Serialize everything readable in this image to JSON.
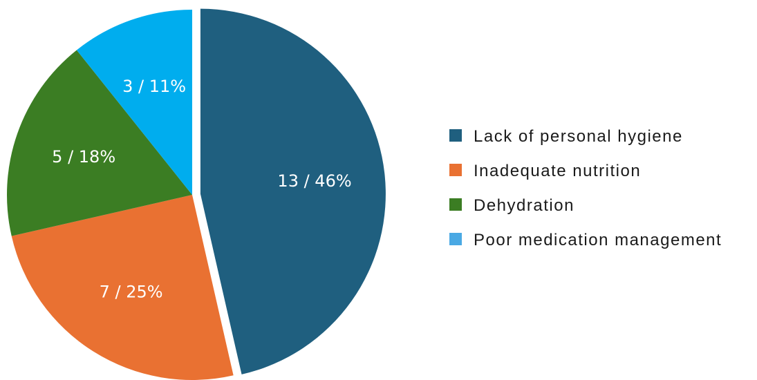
{
  "chart_data": {
    "type": "pie",
    "title": "",
    "slices": [
      {
        "name": "Lack of personal hygiene",
        "count": 13,
        "percent": 46,
        "label": "13 / 46%",
        "color": "#1f5f7f",
        "exploded": true
      },
      {
        "name": "Inadequate nutrition",
        "count": 7,
        "percent": 25,
        "label": "7 / 25%",
        "color": "#e97132"
      },
      {
        "name": "Dehydration",
        "count": 5,
        "percent": 18,
        "label": "5 / 18%",
        "color": "#3b7d23"
      },
      {
        "name": "Poor medication management",
        "count": 3,
        "percent": 11,
        "label": "3 / 11%",
        "color": "#00adee"
      }
    ],
    "legend": {
      "position": "right",
      "items": [
        {
          "label": "Lack of personal hygiene",
          "color": "#1f5f7f"
        },
        {
          "label": "Inadequate nutrition",
          "color": "#e97132"
        },
        {
          "label": "Dehydration",
          "color": "#3b7d23"
        },
        {
          "label": "Poor medication management",
          "color": "#4aa9e4"
        }
      ]
    }
  }
}
